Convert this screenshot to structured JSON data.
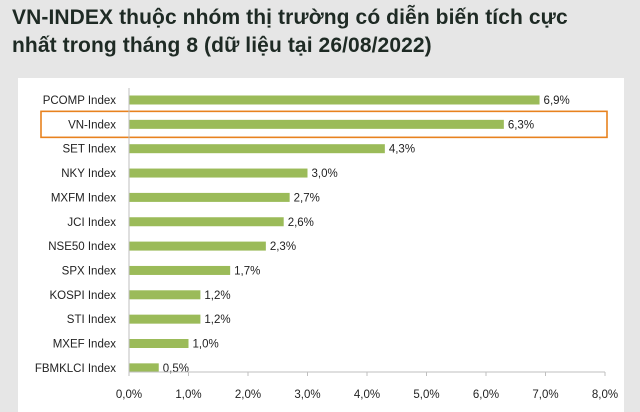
{
  "title_line1": "VN-INDEX thuộc nhóm thị trường có diễn biến tích cực",
  "title_line2": "nhất trong tháng 8 (dữ liệu tại 26/08/2022)",
  "colors": {
    "bar": "#9bbb59",
    "highlight": "#e8821e",
    "text": "#222222"
  },
  "chart_data": {
    "type": "bar",
    "orientation": "horizontal",
    "categories": [
      "PCOMP Index",
      "VN-Index",
      "SET Index",
      "NKY Index",
      "MXFM Index",
      "JCI Index",
      "NSE50 Index",
      "SPX Index",
      "KOSPI Index",
      "STI Index",
      "MXEF Index",
      "FBMKLCI Index"
    ],
    "values": [
      6.9,
      6.3,
      4.3,
      3.0,
      2.7,
      2.6,
      2.3,
      1.7,
      1.2,
      1.2,
      1.0,
      0.5
    ],
    "value_labels": [
      "6,9%",
      "6,3%",
      "4,3%",
      "3,0%",
      "2,7%",
      "2,6%",
      "2,3%",
      "1,7%",
      "1,2%",
      "1,2%",
      "1,0%",
      "0,5%"
    ],
    "x_ticks": [
      0,
      1,
      2,
      3,
      4,
      5,
      6,
      7,
      8
    ],
    "x_tick_labels": [
      "0,0%",
      "1,0%",
      "2,0%",
      "3,0%",
      "4,0%",
      "5,0%",
      "6,0%",
      "7,0%",
      "8,0%"
    ],
    "xlim": [
      0,
      8
    ],
    "highlighted_category": "VN-Index",
    "grid": false,
    "legend": "none"
  }
}
